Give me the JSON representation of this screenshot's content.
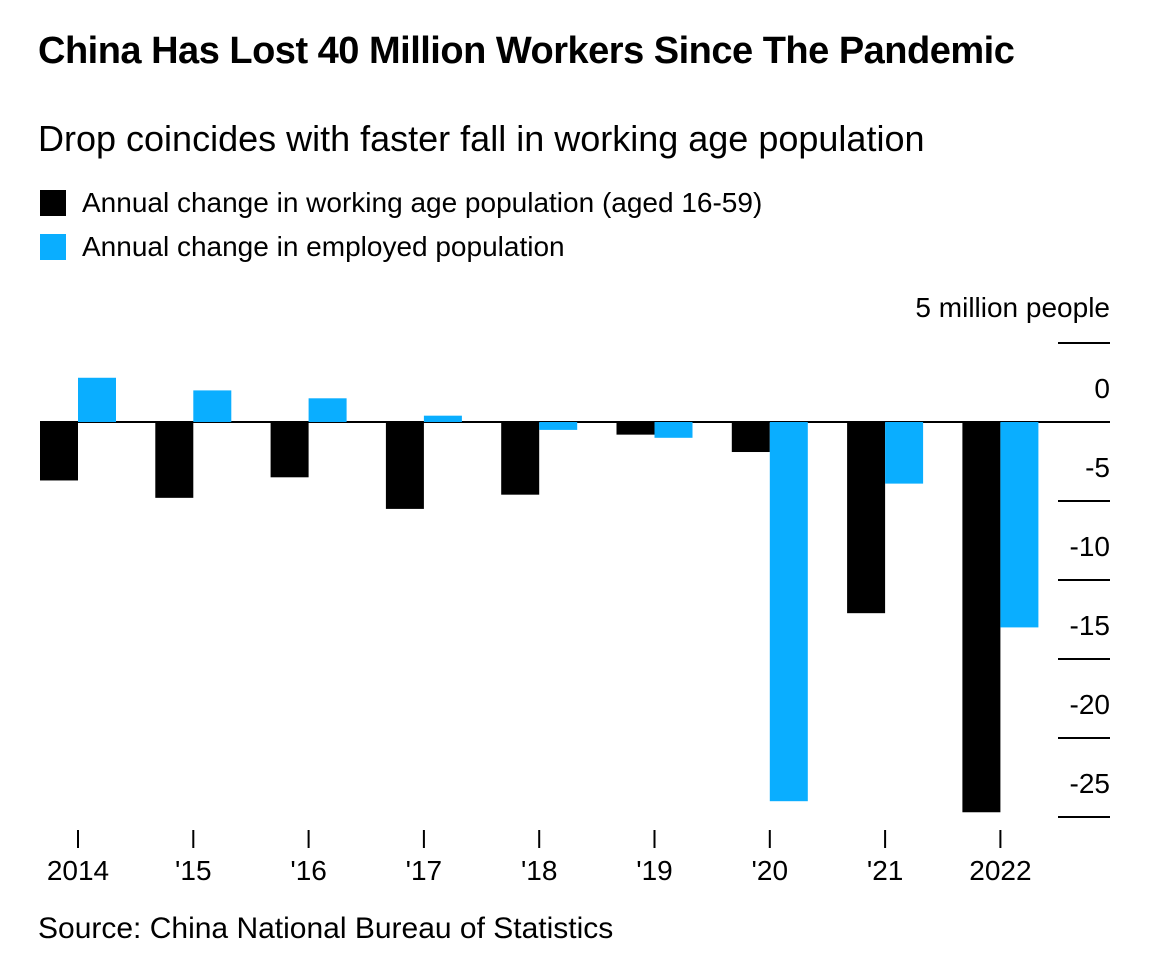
{
  "title": "China Has Lost 40 Million Workers Since The Pandemic",
  "subtitle": "Drop coincides with faster fall in working age population",
  "unit_label": "5 million people",
  "source": "Source: China National Bureau of Statistics",
  "chart_data": {
    "type": "bar",
    "categories": [
      "2014",
      "'15",
      "'16",
      "'17",
      "'18",
      "'19",
      "'20",
      "'21",
      "2022"
    ],
    "series": [
      {
        "name": "Annual change in working age population (aged 16-59)",
        "color": "#000000",
        "values": [
          -3.7,
          -4.8,
          -3.5,
          -5.5,
          -4.6,
          -0.8,
          -1.9,
          -12.1,
          -24.7
        ]
      },
      {
        "name": "Annual change in employed population",
        "color": "#0aaeff",
        "values": [
          2.8,
          2.0,
          1.5,
          0.4,
          -0.5,
          -1.0,
          -24.0,
          -3.9,
          -13.0
        ]
      }
    ],
    "yticks": [
      0,
      -5,
      -10,
      -15,
      -20,
      -25
    ],
    "ylim": [
      -25,
      5
    ],
    "grid": false,
    "legend": "top-left"
  }
}
